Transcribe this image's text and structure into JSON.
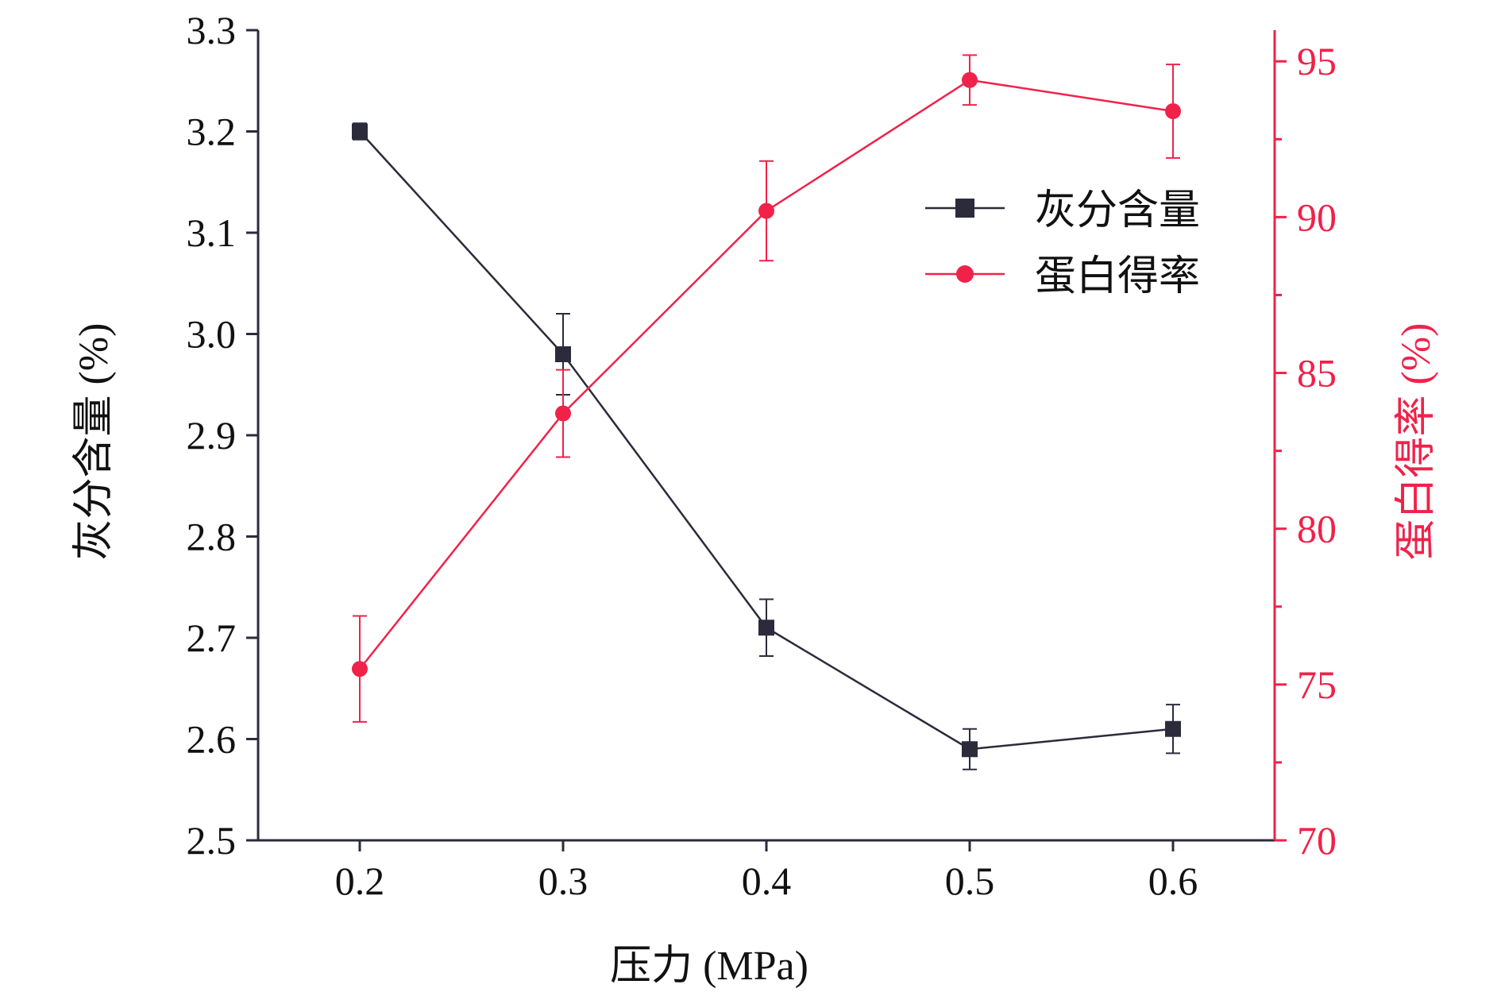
{
  "chart_data": {
    "type": "line",
    "dual_axis": true,
    "title": "",
    "xlabel": "压力 (MPa)",
    "x": [
      0.2,
      0.3,
      0.4,
      0.5,
      0.6
    ],
    "xlim": [
      0.15,
      0.65
    ],
    "x_tick_labels": [
      "0.2",
      "0.3",
      "0.4",
      "0.5",
      "0.6"
    ],
    "y_left": {
      "label": "灰分含量 (%)",
      "lim": [
        2.5,
        3.3
      ],
      "ticks": [
        "2.5",
        "2.6",
        "2.7",
        "2.8",
        "2.9",
        "3.0",
        "3.1",
        "3.2",
        "3.3"
      ],
      "color": "#2b2b3b"
    },
    "y_right": {
      "label": "蛋白得率 (%)",
      "lim": [
        70,
        96
      ],
      "ticks": [
        "70",
        "75",
        "80",
        "85",
        "90",
        "95"
      ],
      "color": "#f0224a"
    },
    "series": [
      {
        "name": "灰分含量",
        "axis": "left",
        "marker": "square",
        "color": "#2b2b3b",
        "values": [
          3.2,
          2.98,
          2.71,
          2.59,
          2.61
        ],
        "errors": [
          0.008,
          0.04,
          0.028,
          0.02,
          0.024
        ]
      },
      {
        "name": "蛋白得率",
        "axis": "right",
        "marker": "circle",
        "color": "#f0224a",
        "values": [
          75.5,
          83.7,
          90.2,
          94.4,
          93.4
        ],
        "errors": [
          1.7,
          1.4,
          1.6,
          0.8,
          1.5
        ]
      }
    ],
    "legend": {
      "position": "top-right"
    },
    "grid": false
  }
}
